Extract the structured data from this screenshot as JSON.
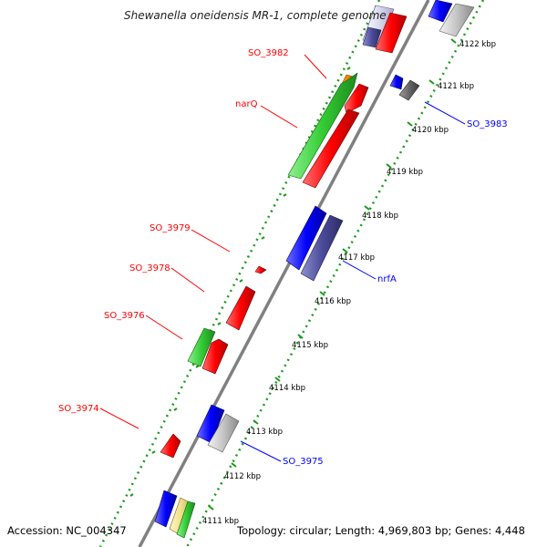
{
  "title": "Shewanella oneidensis MR-1, complete genome",
  "footer": {
    "accession": "Accession: NC_004347",
    "summary": "Topology: circular; Length: 4,969,803 bp; Genes: 4,448"
  },
  "ticks": [
    "4122 kbp",
    "4121 kbp",
    "4120 kbp",
    "4119 kbp",
    "4118 kbp",
    "4117 kbp",
    "4116 kbp",
    "4115 kbp",
    "4114 kbp",
    "4113 kbp",
    "4112 kbp",
    "4111 kbp"
  ],
  "genes_left": [
    "SO_3982",
    "narQ",
    "SO_3979",
    "SO_3978",
    "SO_3976",
    "SO_3974"
  ],
  "genes_right": [
    "SO_3983",
    "nrfA",
    "SO_3975"
  ],
  "colors": {
    "red": "#ff0000",
    "blue": "#0000ff",
    "green": "#33cc33",
    "orange": "#ff9900",
    "navy": "#4b4b9b",
    "grey": "#bbbbbb",
    "darkgrey": "#666666",
    "backbone": "#808080",
    "dots": "#1a9a1a",
    "left_label": "#ff0000",
    "right_label": "#0000ff"
  }
}
